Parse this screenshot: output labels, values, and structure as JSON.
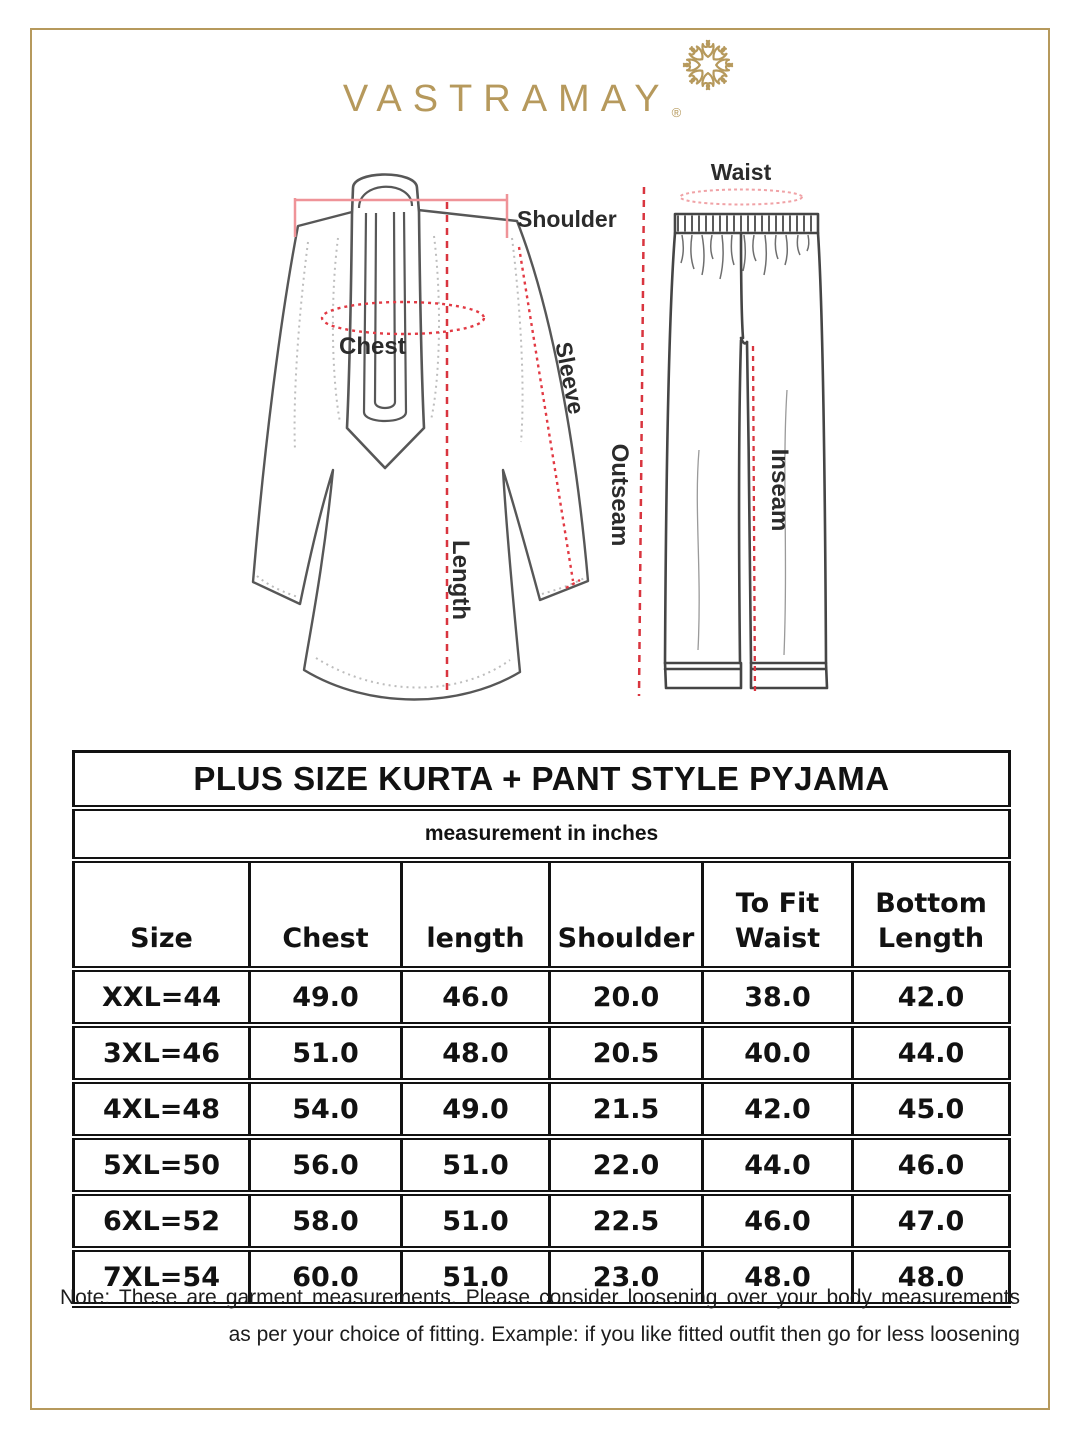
{
  "brand": {
    "name": "VASTRAMAY",
    "registered_mark": "®",
    "ornament_icon": "floral-swirl-mandala"
  },
  "diagram": {
    "kurta": {
      "shoulder_label": "Shoulder",
      "chest_label": "Chest",
      "sleeve_label": "Sleeve",
      "length_label": "Length"
    },
    "pyjama": {
      "waist_label": "Waist",
      "outseam_label": "Outseam",
      "inseam_label": "Inseam"
    }
  },
  "size_chart": {
    "title": "PLUS SIZE KURTA + PANT STYLE PYJAMA",
    "subtitle": "measurement in inches",
    "columns": [
      "Size",
      "Chest",
      "length",
      "Shoulder",
      "To Fit\nWaist",
      "Bottom\nLength"
    ],
    "rows": [
      [
        "XXL=44",
        "49.0",
        "46.0",
        "20.0",
        "38.0",
        "42.0"
      ],
      [
        "3XL=46",
        "51.0",
        "48.0",
        "20.5",
        "40.0",
        "44.0"
      ],
      [
        "4XL=48",
        "54.0",
        "49.0",
        "21.5",
        "42.0",
        "45.0"
      ],
      [
        "5XL=50",
        "56.0",
        "51.0",
        "22.0",
        "44.0",
        "46.0"
      ],
      [
        "6XL=52",
        "58.0",
        "51.0",
        "22.5",
        "46.0",
        "47.0"
      ],
      [
        "7XL=54",
        "60.0",
        "51.0",
        "23.0",
        "48.0",
        "48.0"
      ]
    ]
  },
  "note": {
    "line1": "Note: These are garment measurements. Please consider loosening over your body measurements",
    "line2": "as per your choice of fitting. Example: if you like fitted outfit then go for less loosening"
  },
  "colors": {
    "brand_gold": "#b6995c",
    "measure_red": "#d9353f",
    "measure_pink": "#ef9398",
    "garment_line": "#575757",
    "table_ink": "#121212"
  }
}
